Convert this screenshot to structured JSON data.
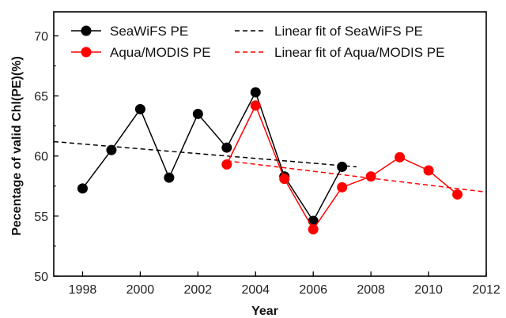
{
  "chart_data": {
    "type": "line",
    "xlabel": "Year",
    "ylabel": "Pecentage of valid Chl(PE)(%)",
    "xlim": [
      1997,
      2012
    ],
    "ylim": [
      50,
      72
    ],
    "xticks": [
      1998,
      2000,
      2002,
      2004,
      2006,
      2008,
      2010,
      2012
    ],
    "yticks": [
      50,
      55,
      60,
      65,
      70
    ],
    "legend_position": "top",
    "series": [
      {
        "name": "SeaWiFS PE",
        "color": "#000000",
        "x": [
          1998,
          1999,
          2000,
          2001,
          2002,
          2003,
          2004,
          2005,
          2006,
          2007
        ],
        "values": [
          57.3,
          60.5,
          63.9,
          58.2,
          63.5,
          60.7,
          65.3,
          58.3,
          54.6,
          59.1
        ]
      },
      {
        "name": "Aqua/MODIS PE",
        "color": "#ff0000",
        "x": [
          2003,
          2004,
          2005,
          2006,
          2007,
          2008,
          2009,
          2010,
          2011
        ],
        "values": [
          59.3,
          64.2,
          58.1,
          53.9,
          57.4,
          58.3,
          59.9,
          58.8,
          56.8
        ]
      }
    ],
    "fits": [
      {
        "name": "Linear fit of SeaWiFS PE",
        "color": "#000000",
        "x": [
          1997,
          2007.5
        ],
        "values": [
          61.2,
          59.1
        ]
      },
      {
        "name": "Linear fit of Aqua/MODIS PE",
        "color": "#ff0000",
        "x": [
          2003,
          2012
        ],
        "values": [
          59.6,
          57.0
        ]
      }
    ]
  }
}
